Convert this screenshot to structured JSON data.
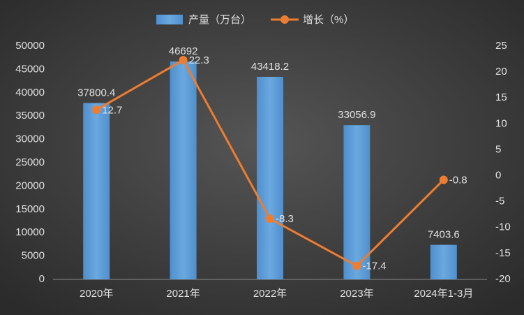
{
  "chart_data": {
    "type": "bar-line",
    "categories": [
      "2020年",
      "2021年",
      "2022年",
      "2023年",
      "2024年1-3月"
    ],
    "series": [
      {
        "name": "产量（万台）",
        "type": "bar",
        "color": "#5b9bd5",
        "values": [
          37800.4,
          46692,
          43418.2,
          33056.9,
          7403.6
        ]
      },
      {
        "name": "增长（%）",
        "type": "line",
        "axis": "y2",
        "color": "#ed7d31",
        "values": [
          12.7,
          22.3,
          -8.3,
          -17.4,
          -0.8
        ]
      }
    ],
    "ylim": [
      0,
      50000
    ],
    "yticks": [
      0,
      5000,
      10000,
      15000,
      20000,
      25000,
      30000,
      35000,
      40000,
      45000,
      50000
    ],
    "y2lim": [
      -20,
      25
    ],
    "y2ticks": [
      -20,
      -15,
      -10,
      -5,
      0,
      5,
      10,
      15,
      20,
      25
    ],
    "legend": "top"
  }
}
